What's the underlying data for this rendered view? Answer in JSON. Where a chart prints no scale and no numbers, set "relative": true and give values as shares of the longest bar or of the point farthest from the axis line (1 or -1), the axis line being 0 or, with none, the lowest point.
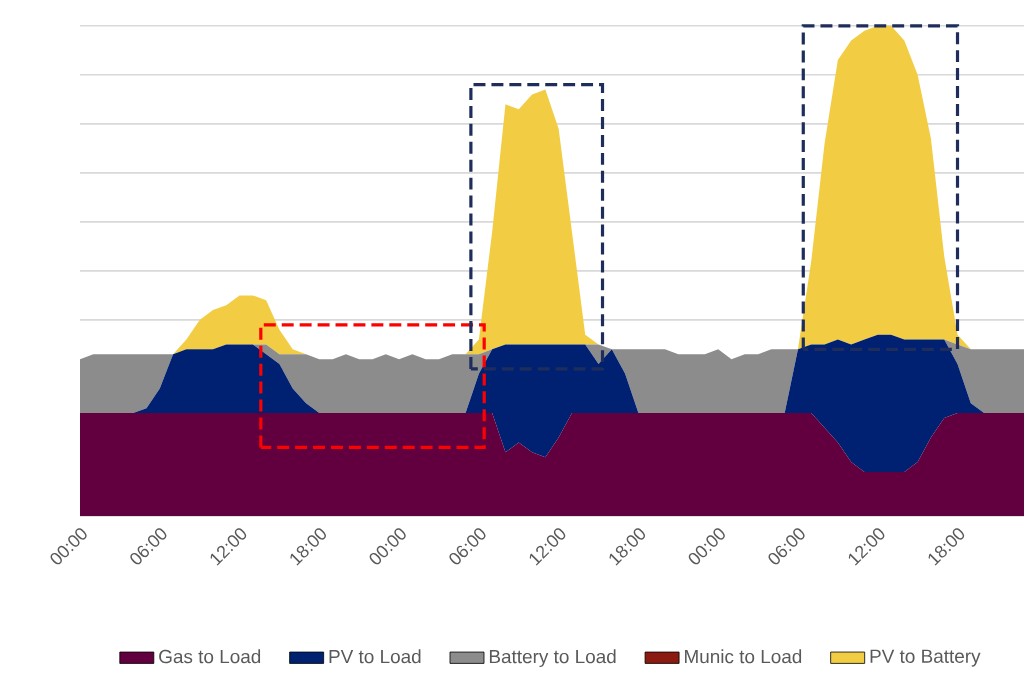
{
  "chart_data": {
    "type": "area",
    "stacked": true,
    "relative": true,
    "grid": "y",
    "legend": "bottom",
    "categories": [
      "00:00",
      null,
      null,
      null,
      null,
      null,
      "06:00",
      null,
      null,
      null,
      null,
      null,
      "12:00",
      null,
      null,
      null,
      null,
      null,
      "18:00",
      null,
      null,
      null,
      null,
      null,
      "00:00",
      null,
      null,
      null,
      null,
      null,
      "06:00",
      null,
      null,
      null,
      null,
      null,
      "12:00",
      null,
      null,
      null,
      null,
      null,
      "18:00",
      null,
      null,
      null,
      null,
      null,
      "00:00",
      null,
      null,
      null,
      null,
      null,
      "06:00",
      null,
      null,
      null,
      null,
      null,
      "12:00",
      null,
      null,
      null,
      null,
      null,
      "18:00",
      null,
      null,
      null,
      null,
      null
    ],
    "series": [
      {
        "name": "Gas to Load",
        "color": "#62003f",
        "values": [
          0.21,
          0.21,
          0.21,
          0.21,
          0.21,
          0.21,
          0.21,
          0.21,
          0.21,
          0.21,
          0.21,
          0.21,
          0.21,
          0.21,
          0.21,
          0.21,
          0.21,
          0.21,
          0.21,
          0.21,
          0.21,
          0.21,
          0.21,
          0.21,
          0.21,
          0.21,
          0.21,
          0.21,
          0.21,
          0.21,
          0.21,
          0.21,
          0.13,
          0.15,
          0.13,
          0.12,
          0.16,
          0.21,
          0.21,
          0.21,
          0.21,
          0.21,
          0.21,
          0.21,
          0.21,
          0.21,
          0.21,
          0.21,
          0.21,
          0.21,
          0.21,
          0.21,
          0.21,
          0.21,
          0.21,
          0.21,
          0.18,
          0.15,
          0.11,
          0.09,
          0.09,
          0.09,
          0.09,
          0.11,
          0.16,
          0.2,
          0.21,
          0.21,
          0.21,
          0.21,
          0.21,
          0.21
        ]
      },
      {
        "name": "PV to Load",
        "color": "#002072",
        "values": [
          0,
          0,
          0,
          0,
          0,
          0.01,
          0.05,
          0.12,
          0.13,
          0.13,
          0.13,
          0.14,
          0.14,
          0.14,
          0.12,
          0.1,
          0.05,
          0.02,
          0,
          0,
          0,
          0,
          0,
          0,
          0,
          0,
          0,
          0,
          0,
          0,
          0.08,
          0.13,
          0.22,
          0.2,
          0.22,
          0.23,
          0.19,
          0.14,
          0.14,
          0.1,
          0.13,
          0.08,
          0,
          0,
          0,
          0,
          0,
          0,
          0,
          0,
          0,
          0,
          0,
          0,
          0.13,
          0.14,
          0.17,
          0.21,
          0.24,
          0.27,
          0.28,
          0.28,
          0.27,
          0.25,
          0.2,
          0.16,
          0.1,
          0.02,
          0,
          0,
          0,
          0
        ]
      },
      {
        "name": "Battery to Load",
        "color": "#8c8c8c",
        "values": [
          0.11,
          0.12,
          0.12,
          0.12,
          0.12,
          0.11,
          0.07,
          0,
          0,
          0,
          0,
          0,
          0,
          0,
          0.02,
          0.02,
          0.07,
          0.1,
          0.11,
          0.11,
          0.12,
          0.11,
          0.11,
          0.12,
          0.11,
          0.12,
          0.11,
          0.11,
          0.12,
          0.12,
          0.04,
          0,
          0,
          0,
          0,
          0,
          0,
          0,
          0,
          0.04,
          0,
          0.05,
          0.13,
          0.13,
          0.13,
          0.12,
          0.12,
          0.12,
          0.13,
          0.11,
          0.12,
          0.12,
          0.13,
          0.13,
          0,
          0,
          0,
          0,
          0,
          0,
          0,
          0,
          0,
          0,
          0,
          0,
          0.04,
          0.11,
          0.13,
          0.13,
          0.13,
          0.13
        ]
      },
      {
        "name": "Munic to Load",
        "color": "#8b1a10",
        "values": [
          null,
          null,
          null,
          null,
          null,
          null,
          null,
          null,
          null,
          null,
          null,
          null,
          null,
          null,
          null,
          null,
          null,
          null,
          null,
          null,
          null,
          null,
          null,
          null,
          null,
          null,
          null,
          null,
          null,
          null,
          null,
          null,
          null,
          null,
          null,
          null,
          null,
          null,
          null,
          null,
          null,
          null,
          null,
          null,
          null,
          null,
          null,
          null,
          null,
          null,
          null,
          null,
          null,
          null,
          null,
          null,
          null,
          null,
          null,
          null,
          null,
          null,
          null,
          null,
          null,
          null,
          null,
          null,
          null,
          null,
          null,
          null
        ]
      },
      {
        "name": "PV to Battery",
        "color": "#f2cd44",
        "values": [
          0,
          0,
          0,
          0,
          0,
          0,
          0,
          0,
          0.02,
          0.06,
          0.08,
          0.08,
          0.1,
          0.1,
          0.09,
          0.05,
          0.01,
          0,
          0,
          0,
          0,
          0,
          0,
          0,
          0,
          0,
          0,
          0,
          0,
          0,
          0.03,
          0.24,
          0.49,
          0.48,
          0.51,
          0.52,
          0.44,
          0.23,
          0.02,
          0,
          0,
          0,
          0,
          0,
          0,
          0,
          0,
          0,
          0,
          0,
          0,
          0,
          0,
          0,
          0,
          0.17,
          0.41,
          0.57,
          0.62,
          0.63,
          0.63,
          0.63,
          0.61,
          0.54,
          0.41,
          0.17,
          0.02,
          0,
          0,
          0,
          0,
          0
        ]
      }
    ]
  }
}
